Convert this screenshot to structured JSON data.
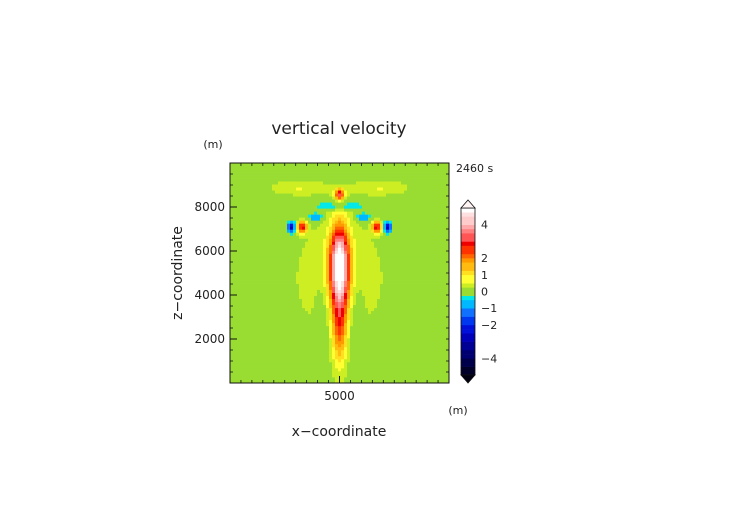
{
  "chart_data": {
    "type": "heatmap",
    "title": "vertical velocity",
    "xlabel": "x−coordinate",
    "ylabel": "z−coordinate",
    "x_unit": "(m)",
    "y_unit": "(m)",
    "time_label": "2460 s",
    "xlim": [
      0,
      10000
    ],
    "ylim": [
      0,
      10000
    ],
    "x_ticks": [
      5000
    ],
    "x_tick_labels": [
      "5000"
    ],
    "y_ticks": [
      2000,
      4000,
      6000,
      8000
    ],
    "y_tick_labels": [
      "2000",
      "4000",
      "6000",
      "8000"
    ],
    "colorbar": {
      "range": [
        -5,
        5
      ],
      "tick_values": [
        4,
        2,
        1,
        0,
        -1,
        -2,
        -4
      ],
      "tick_labels": [
        "4",
        "2",
        "1",
        "0",
        "−1",
        "−2",
        "−4"
      ]
    },
    "features": [
      {
        "kind": "updraft core",
        "x": 5000,
        "z_range": [
          300,
          7700
        ],
        "peak_w": 5.0
      },
      {
        "kind": "updraft cap",
        "x": 5000,
        "z": 8600,
        "peak_w": 3.0
      },
      {
        "kind": "side updraft",
        "x": 3300,
        "z": 7100,
        "peak_w": 3.0
      },
      {
        "kind": "side updraft",
        "x": 6700,
        "z": 7100,
        "peak_w": 3.0
      },
      {
        "kind": "downdraft",
        "x": 2800,
        "z": 7100,
        "peak_w": -3.0
      },
      {
        "kind": "downdraft",
        "x": 7200,
        "z": 7100,
        "peak_w": -3.0
      }
    ],
    "grid": false,
    "legend": "right colorbar"
  }
}
